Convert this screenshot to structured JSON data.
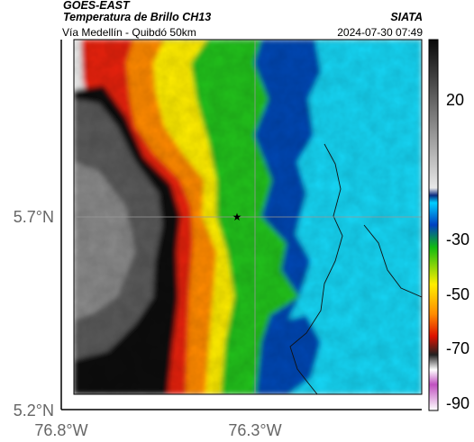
{
  "header": {
    "satellite": "GOES-EAST",
    "product": "Temperatura de Brillo CH13",
    "region": "Vía Medellín - Quibdó 50km",
    "institution": "SIATA",
    "datetime": "2024-07-30 07:49"
  },
  "axes": {
    "lat_ticks": [
      "5.7°N",
      "5.2°N"
    ],
    "lon_ticks": [
      "76.8°W",
      "76.3°W"
    ]
  },
  "colorbar": {
    "ticks": [
      "20",
      "-30",
      "-50",
      "-70",
      "-90"
    ]
  },
  "map": {
    "marker": "star-icon",
    "colors": {
      "warm_gray": "#5a5a5a",
      "black": "#111111",
      "red": "#e8200a",
      "orange": "#ff8a00",
      "yellow": "#ffee00",
      "green": "#22c21e",
      "blue": "#0047b3",
      "cyan": "#19d6f5",
      "white": "#ececec"
    }
  }
}
